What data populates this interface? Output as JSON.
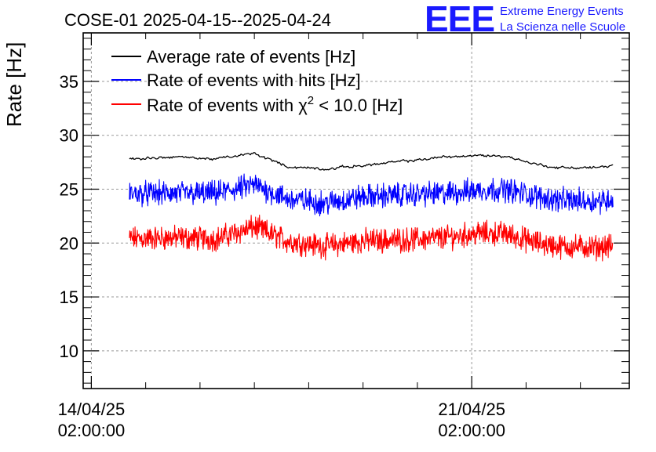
{
  "header": {
    "title": "COSE-01 2025-04-15--2025-04-24",
    "logo_text": "EEE",
    "logo_line1": "Extreme Energy Events",
    "logo_line2": "La Scienza nelle Scuole"
  },
  "chart_data": {
    "type": "line",
    "title": "COSE-01 2025-04-15--2025-04-24",
    "ylabel": "Rate [Hz]",
    "xlabel": "",
    "ylim": [
      6.5,
      39.5
    ],
    "xlim_days": [
      -0.15,
      9.9
    ],
    "x_unit": "days since 14/04/25 02:00:00",
    "yticks": [
      "10",
      "15",
      "20",
      "25",
      "30",
      "35"
    ],
    "ytick_values": [
      10,
      15,
      20,
      25,
      30,
      35
    ],
    "xticks": [
      {
        "day": 0,
        "line1": "14/04/25",
        "line2": "02:00:00"
      },
      {
        "day": 7,
        "line1": "21/04/25",
        "line2": "02:00:00"
      }
    ],
    "grid": true,
    "legend_position": "top-left",
    "x_knots": [
      0.7,
      1.5,
      2.3,
      3.0,
      3.6,
      4.3,
      5.0,
      5.8,
      6.5,
      7.1,
      7.6,
      8.2,
      8.6,
      9.3,
      9.6
    ],
    "series": [
      {
        "name": "Average rate of events [Hz]",
        "label_main": "Average rate of events [Hz]",
        "color": "#000000",
        "noise": 0.15,
        "values": [
          27.8,
          28.0,
          27.8,
          28.3,
          27.1,
          26.9,
          27.2,
          27.6,
          28.0,
          28.1,
          28.1,
          27.3,
          27.0,
          27.0,
          27.2
        ]
      },
      {
        "name": "Rate of events with hits [Hz]",
        "label_main": "Rate of events with hits [Hz]",
        "color": "#0000ff",
        "noise": 0.85,
        "values": [
          24.6,
          24.6,
          24.6,
          25.4,
          24.1,
          23.7,
          24.3,
          24.5,
          24.6,
          24.9,
          25.0,
          24.3,
          24.0,
          23.9,
          24.1
        ]
      },
      {
        "name": "Rate of events with χ² < 10.0 [Hz]",
        "label_main": "Rate of events with χ",
        "label_sup": "2",
        "label_tail": " < 10.0 [Hz]",
        "color": "#ff0000",
        "noise": 0.85,
        "values": [
          20.4,
          20.5,
          20.4,
          21.5,
          20.2,
          19.7,
          20.2,
          20.3,
          20.5,
          20.9,
          20.9,
          20.0,
          19.7,
          19.6,
          19.7
        ]
      }
    ]
  }
}
